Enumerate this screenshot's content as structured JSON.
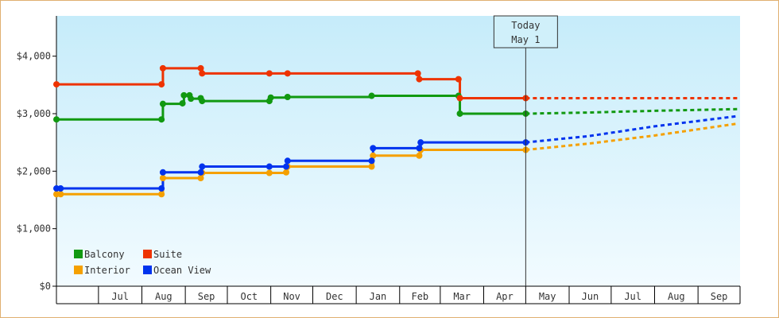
{
  "chart_data": {
    "type": "line",
    "title": "",
    "xlabel": "",
    "ylabel": "",
    "ylim": [
      0,
      4700
    ],
    "y_ticks": [
      {
        "value": 0,
        "label": "$0"
      },
      {
        "value": 1000,
        "label": "$1,000"
      },
      {
        "value": 2000,
        "label": "$2,000"
      },
      {
        "value": 3000,
        "label": "$3,000"
      },
      {
        "value": 4000,
        "label": "$4,000"
      }
    ],
    "x_domain": [
      "2023-06-01",
      "2024-09-30"
    ],
    "month_ticks": [
      {
        "label": "Jul",
        "start": "2023-07-01",
        "end": "2023-08-01"
      },
      {
        "label": "Aug",
        "start": "2023-08-01",
        "end": "2023-09-01"
      },
      {
        "label": "Sep",
        "start": "2023-09-01",
        "end": "2023-10-01"
      },
      {
        "label": "Oct",
        "start": "2023-10-01",
        "end": "2023-11-01"
      },
      {
        "label": "Nov",
        "start": "2023-11-01",
        "end": "2023-12-01"
      },
      {
        "label": "Dec",
        "start": "2023-12-01",
        "end": "2024-01-01"
      },
      {
        "label": "Jan",
        "start": "2024-01-01",
        "end": "2024-02-01"
      },
      {
        "label": "Feb",
        "start": "2024-02-01",
        "end": "2024-03-01"
      },
      {
        "label": "Mar",
        "start": "2024-03-01",
        "end": "2024-04-01"
      },
      {
        "label": "Apr",
        "start": "2024-04-01",
        "end": "2024-05-01"
      },
      {
        "label": "May",
        "start": "2024-05-01",
        "end": "2024-06-01"
      },
      {
        "label": "Jun",
        "start": "2024-06-01",
        "end": "2024-07-01"
      },
      {
        "label": "Jul",
        "start": "2024-07-01",
        "end": "2024-08-01"
      },
      {
        "label": "Aug",
        "start": "2024-08-01",
        "end": "2024-09-01"
      },
      {
        "label": "Sep",
        "start": "2024-09-01",
        "end": "2024-10-01"
      }
    ],
    "today": {
      "date": "2024-05-01",
      "line1": "Today",
      "line2": "May 1"
    },
    "legend": {
      "position": "bottom-left"
    },
    "series": [
      {
        "name": "Balcony",
        "color": "#119911",
        "points": [
          {
            "date": "2023-06-01",
            "value": 2900
          },
          {
            "date": "2023-08-15",
            "value": 2900
          },
          {
            "date": "2023-08-16",
            "value": 3170
          },
          {
            "date": "2023-08-30",
            "value": 3180
          },
          {
            "date": "2023-08-31",
            "value": 3320
          },
          {
            "date": "2023-09-04",
            "value": 3320
          },
          {
            "date": "2023-09-05",
            "value": 3260
          },
          {
            "date": "2023-09-12",
            "value": 3270
          },
          {
            "date": "2023-09-13",
            "value": 3220
          },
          {
            "date": "2023-10-31",
            "value": 3220
          },
          {
            "date": "2023-11-01",
            "value": 3280
          },
          {
            "date": "2023-11-13",
            "value": 3290
          },
          {
            "date": "2024-01-12",
            "value": 3310
          },
          {
            "date": "2024-03-14",
            "value": 3310
          },
          {
            "date": "2024-03-15",
            "value": 3000
          },
          {
            "date": "2024-05-01",
            "value": 3000
          }
        ],
        "forecast": [
          {
            "date": "2024-05-01",
            "value": 3000
          },
          {
            "date": "2024-06-15",
            "value": 3020
          },
          {
            "date": "2024-08-01",
            "value": 3050
          },
          {
            "date": "2024-09-30",
            "value": 3080
          }
        ]
      },
      {
        "name": "Suite",
        "color": "#ee3300",
        "points": [
          {
            "date": "2023-06-01",
            "value": 3510
          },
          {
            "date": "2023-08-15",
            "value": 3510
          },
          {
            "date": "2023-08-16",
            "value": 3790
          },
          {
            "date": "2023-09-12",
            "value": 3790
          },
          {
            "date": "2023-09-13",
            "value": 3700
          },
          {
            "date": "2023-10-31",
            "value": 3700
          },
          {
            "date": "2023-11-13",
            "value": 3700
          },
          {
            "date": "2024-02-14",
            "value": 3700
          },
          {
            "date": "2024-02-15",
            "value": 3600
          },
          {
            "date": "2024-03-14",
            "value": 3600
          },
          {
            "date": "2024-03-15",
            "value": 3270
          },
          {
            "date": "2024-05-01",
            "value": 3270
          }
        ],
        "forecast": [
          {
            "date": "2024-05-01",
            "value": 3270
          },
          {
            "date": "2024-09-30",
            "value": 3270
          }
        ]
      },
      {
        "name": "Interior",
        "color": "#f5a000",
        "points": [
          {
            "date": "2023-06-01",
            "value": 1600
          },
          {
            "date": "2023-06-04",
            "value": 1600
          },
          {
            "date": "2023-08-15",
            "value": 1600
          },
          {
            "date": "2023-08-16",
            "value": 1880
          },
          {
            "date": "2023-09-12",
            "value": 1880
          },
          {
            "date": "2023-09-13",
            "value": 1970
          },
          {
            "date": "2023-10-31",
            "value": 1970
          },
          {
            "date": "2023-11-12",
            "value": 1980
          },
          {
            "date": "2023-11-13",
            "value": 2080
          },
          {
            "date": "2024-01-12",
            "value": 2080
          },
          {
            "date": "2024-01-13",
            "value": 2270
          },
          {
            "date": "2024-02-15",
            "value": 2270
          },
          {
            "date": "2024-02-16",
            "value": 2370
          },
          {
            "date": "2024-05-01",
            "value": 2370
          }
        ],
        "forecast": [
          {
            "date": "2024-05-01",
            "value": 2370
          },
          {
            "date": "2024-06-15",
            "value": 2480
          },
          {
            "date": "2024-08-01",
            "value": 2620
          },
          {
            "date": "2024-09-30",
            "value": 2830
          }
        ]
      },
      {
        "name": "Ocean View",
        "color": "#0033ee",
        "points": [
          {
            "date": "2023-06-01",
            "value": 1700
          },
          {
            "date": "2023-06-04",
            "value": 1700
          },
          {
            "date": "2023-08-15",
            "value": 1700
          },
          {
            "date": "2023-08-16",
            "value": 1980
          },
          {
            "date": "2023-09-12",
            "value": 1980
          },
          {
            "date": "2023-09-13",
            "value": 2080
          },
          {
            "date": "2023-10-31",
            "value": 2080
          },
          {
            "date": "2023-11-12",
            "value": 2080
          },
          {
            "date": "2023-11-13",
            "value": 2180
          },
          {
            "date": "2024-01-12",
            "value": 2180
          },
          {
            "date": "2024-01-13",
            "value": 2400
          },
          {
            "date": "2024-02-15",
            "value": 2400
          },
          {
            "date": "2024-02-16",
            "value": 2500
          },
          {
            "date": "2024-05-01",
            "value": 2500
          }
        ],
        "forecast": [
          {
            "date": "2024-05-01",
            "value": 2500
          },
          {
            "date": "2024-06-15",
            "value": 2610
          },
          {
            "date": "2024-08-01",
            "value": 2780
          },
          {
            "date": "2024-09-30",
            "value": 2960
          }
        ]
      }
    ]
  }
}
